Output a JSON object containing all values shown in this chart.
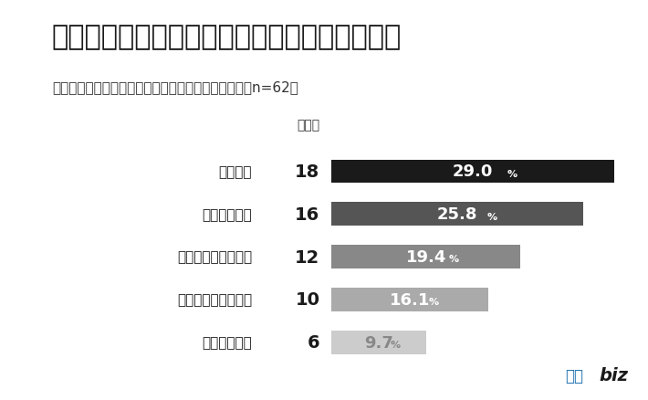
{
  "title": "会計ソフトの比較でもっとも重視したポイント",
  "subtitle": "会計ソフトの導入状況に「導入中」と回答した企業（n=62）",
  "col_label": "回答数",
  "categories": [
    "導入費用",
    "実際の使用感",
    "全く比較しなかった",
    "機能とカスタマイズ",
    "サポート内容"
  ],
  "counts": [
    18,
    16,
    12,
    10,
    6
  ],
  "percentages": [
    29.0,
    25.8,
    19.4,
    16.1,
    9.7
  ],
  "pct_labels": [
    "29.0",
    "25.8",
    "19.4",
    "16.1",
    "9.7"
  ],
  "bar_colors": [
    "#1a1a1a",
    "#555555",
    "#888888",
    "#aaaaaa",
    "#cccccc"
  ],
  "text_colors": [
    "#ffffff",
    "#ffffff",
    "#ffffff",
    "#ffffff",
    "#888888"
  ],
  "max_pct": 29.0,
  "background_color": "#ffffff",
  "title_fontsize": 22,
  "subtitle_fontsize": 11,
  "bar_height": 0.55,
  "logo_text1": "比較",
  "logo_text2": "biz",
  "logo_color1": "#1a6faf",
  "logo_color2": "#1a1a1a"
}
